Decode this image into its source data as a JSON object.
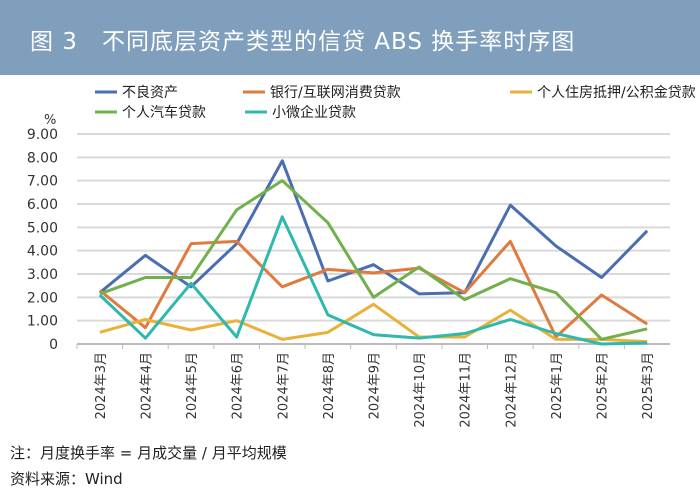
{
  "header": {
    "title": "图 3　不同底层资产类型的信贷 ABS 换手率时序图"
  },
  "notes": [
    "注：月度换手率 = 月成交量 / 月平均规模",
    "资料来源：Wind"
  ],
  "chart_data": {
    "type": "line",
    "title": "图 3　不同底层资产类型的信贷 ABS 换手率时序图",
    "ylabel": "%",
    "ylim": [
      0,
      9
    ],
    "yticks": [
      "0",
      "1.00",
      "2.00",
      "3.00",
      "4.00",
      "5.00",
      "6.00",
      "7.00",
      "8.00",
      "9.00"
    ],
    "grid": true,
    "legend": "top",
    "categories": [
      "2024年3月",
      "2024年4月",
      "2024年5月",
      "2024年6月",
      "2024年7月",
      "2024年8月",
      "2024年9月",
      "2024年10月",
      "2024年11月",
      "2024年12月",
      "2025年1月",
      "2025年2月",
      "2025年3月"
    ],
    "series": [
      {
        "name": "不良资产",
        "color": "#4a6eb0",
        "values": [
          2.2,
          3.8,
          2.45,
          4.3,
          7.85,
          2.7,
          3.4,
          2.15,
          2.2,
          5.95,
          4.2,
          2.85,
          4.85
        ]
      },
      {
        "name": "银行/互联网消费贷款",
        "color": "#e07b3f",
        "values": [
          2.3,
          0.7,
          4.3,
          4.4,
          2.45,
          3.2,
          3.05,
          3.25,
          2.2,
          4.4,
          0.3,
          2.1,
          0.85
        ]
      },
      {
        "name": "个人住房抵押/公积金贷款",
        "color": "#e8b23a",
        "values": [
          0.5,
          1.05,
          0.6,
          1.0,
          0.2,
          0.5,
          1.7,
          0.3,
          0.3,
          1.45,
          0.2,
          0.2,
          0.1
        ]
      },
      {
        "name": "个人汽车贷款",
        "color": "#72b04b",
        "values": [
          2.15,
          2.85,
          2.85,
          5.75,
          7.0,
          5.2,
          2.0,
          3.3,
          1.9,
          2.8,
          2.2,
          0.2,
          0.65
        ]
      },
      {
        "name": "小微企业贷款",
        "color": "#2fb8ad",
        "values": [
          2.1,
          0.25,
          2.6,
          0.3,
          5.45,
          1.25,
          0.4,
          0.25,
          0.45,
          1.05,
          0.45,
          0.0,
          0.05
        ]
      }
    ]
  }
}
